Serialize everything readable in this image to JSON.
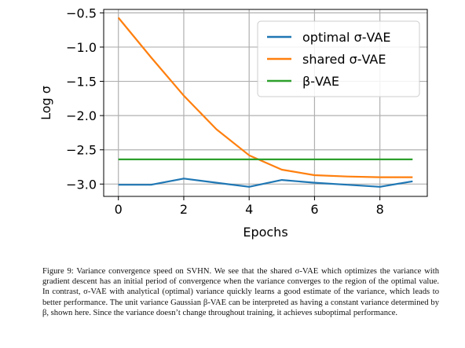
{
  "chart_data": {
    "type": "line",
    "title": "",
    "xlabel": "Epochs",
    "ylabel": "Log σ",
    "xlim": [
      -0.45,
      9.45
    ],
    "ylim": [
      -3.18,
      -0.45
    ],
    "x_ticks": [
      0,
      2,
      4,
      6,
      8
    ],
    "x_tick_labels": [
      "0",
      "2",
      "4",
      "6",
      "8"
    ],
    "y_ticks": [
      -0.5,
      -1.0,
      -1.5,
      -2.0,
      -2.5,
      -3.0
    ],
    "y_tick_labels": [
      "−0.5",
      "−1.0",
      "−1.5",
      "−2.0",
      "−2.5",
      "−3.0"
    ],
    "grid": true,
    "legend_position": "top-right",
    "x": [
      0,
      1,
      2,
      3,
      4,
      5,
      6,
      7,
      8,
      9
    ],
    "series": [
      {
        "name": "optimal σ-VAE",
        "color": "#1f77b4",
        "values": [
          -3.01,
          -3.01,
          -2.92,
          -2.98,
          -3.04,
          -2.94,
          -2.98,
          -3.01,
          -3.04,
          -2.96
        ]
      },
      {
        "name": "shared σ-VAE",
        "color": "#ff7f0e",
        "values": [
          -0.57,
          -1.15,
          -1.71,
          -2.2,
          -2.58,
          -2.79,
          -2.87,
          -2.89,
          -2.9,
          -2.9
        ]
      },
      {
        "name": "β-VAE",
        "color": "#2ca02c",
        "values": [
          -2.64,
          -2.64,
          -2.64,
          -2.64,
          -2.64,
          -2.64,
          -2.64,
          -2.64,
          -2.64,
          -2.64
        ]
      }
    ]
  },
  "caption": "Figure 9: Variance convergence speed on SVHN. We see that the shared σ-VAE which optimizes the variance with gradient descent has an initial period of convergence when the variance converges to the region of the optimal value. In contrast, σ-VAE with analytical (optimal) variance quickly learns a good estimate of the variance, which leads to better performance. The unit variance Gaussian β-VAE can be interpreted as having a constant variance determined by β, shown here. Since the variance doesn’t change throughout training, it achieves suboptimal performance."
}
